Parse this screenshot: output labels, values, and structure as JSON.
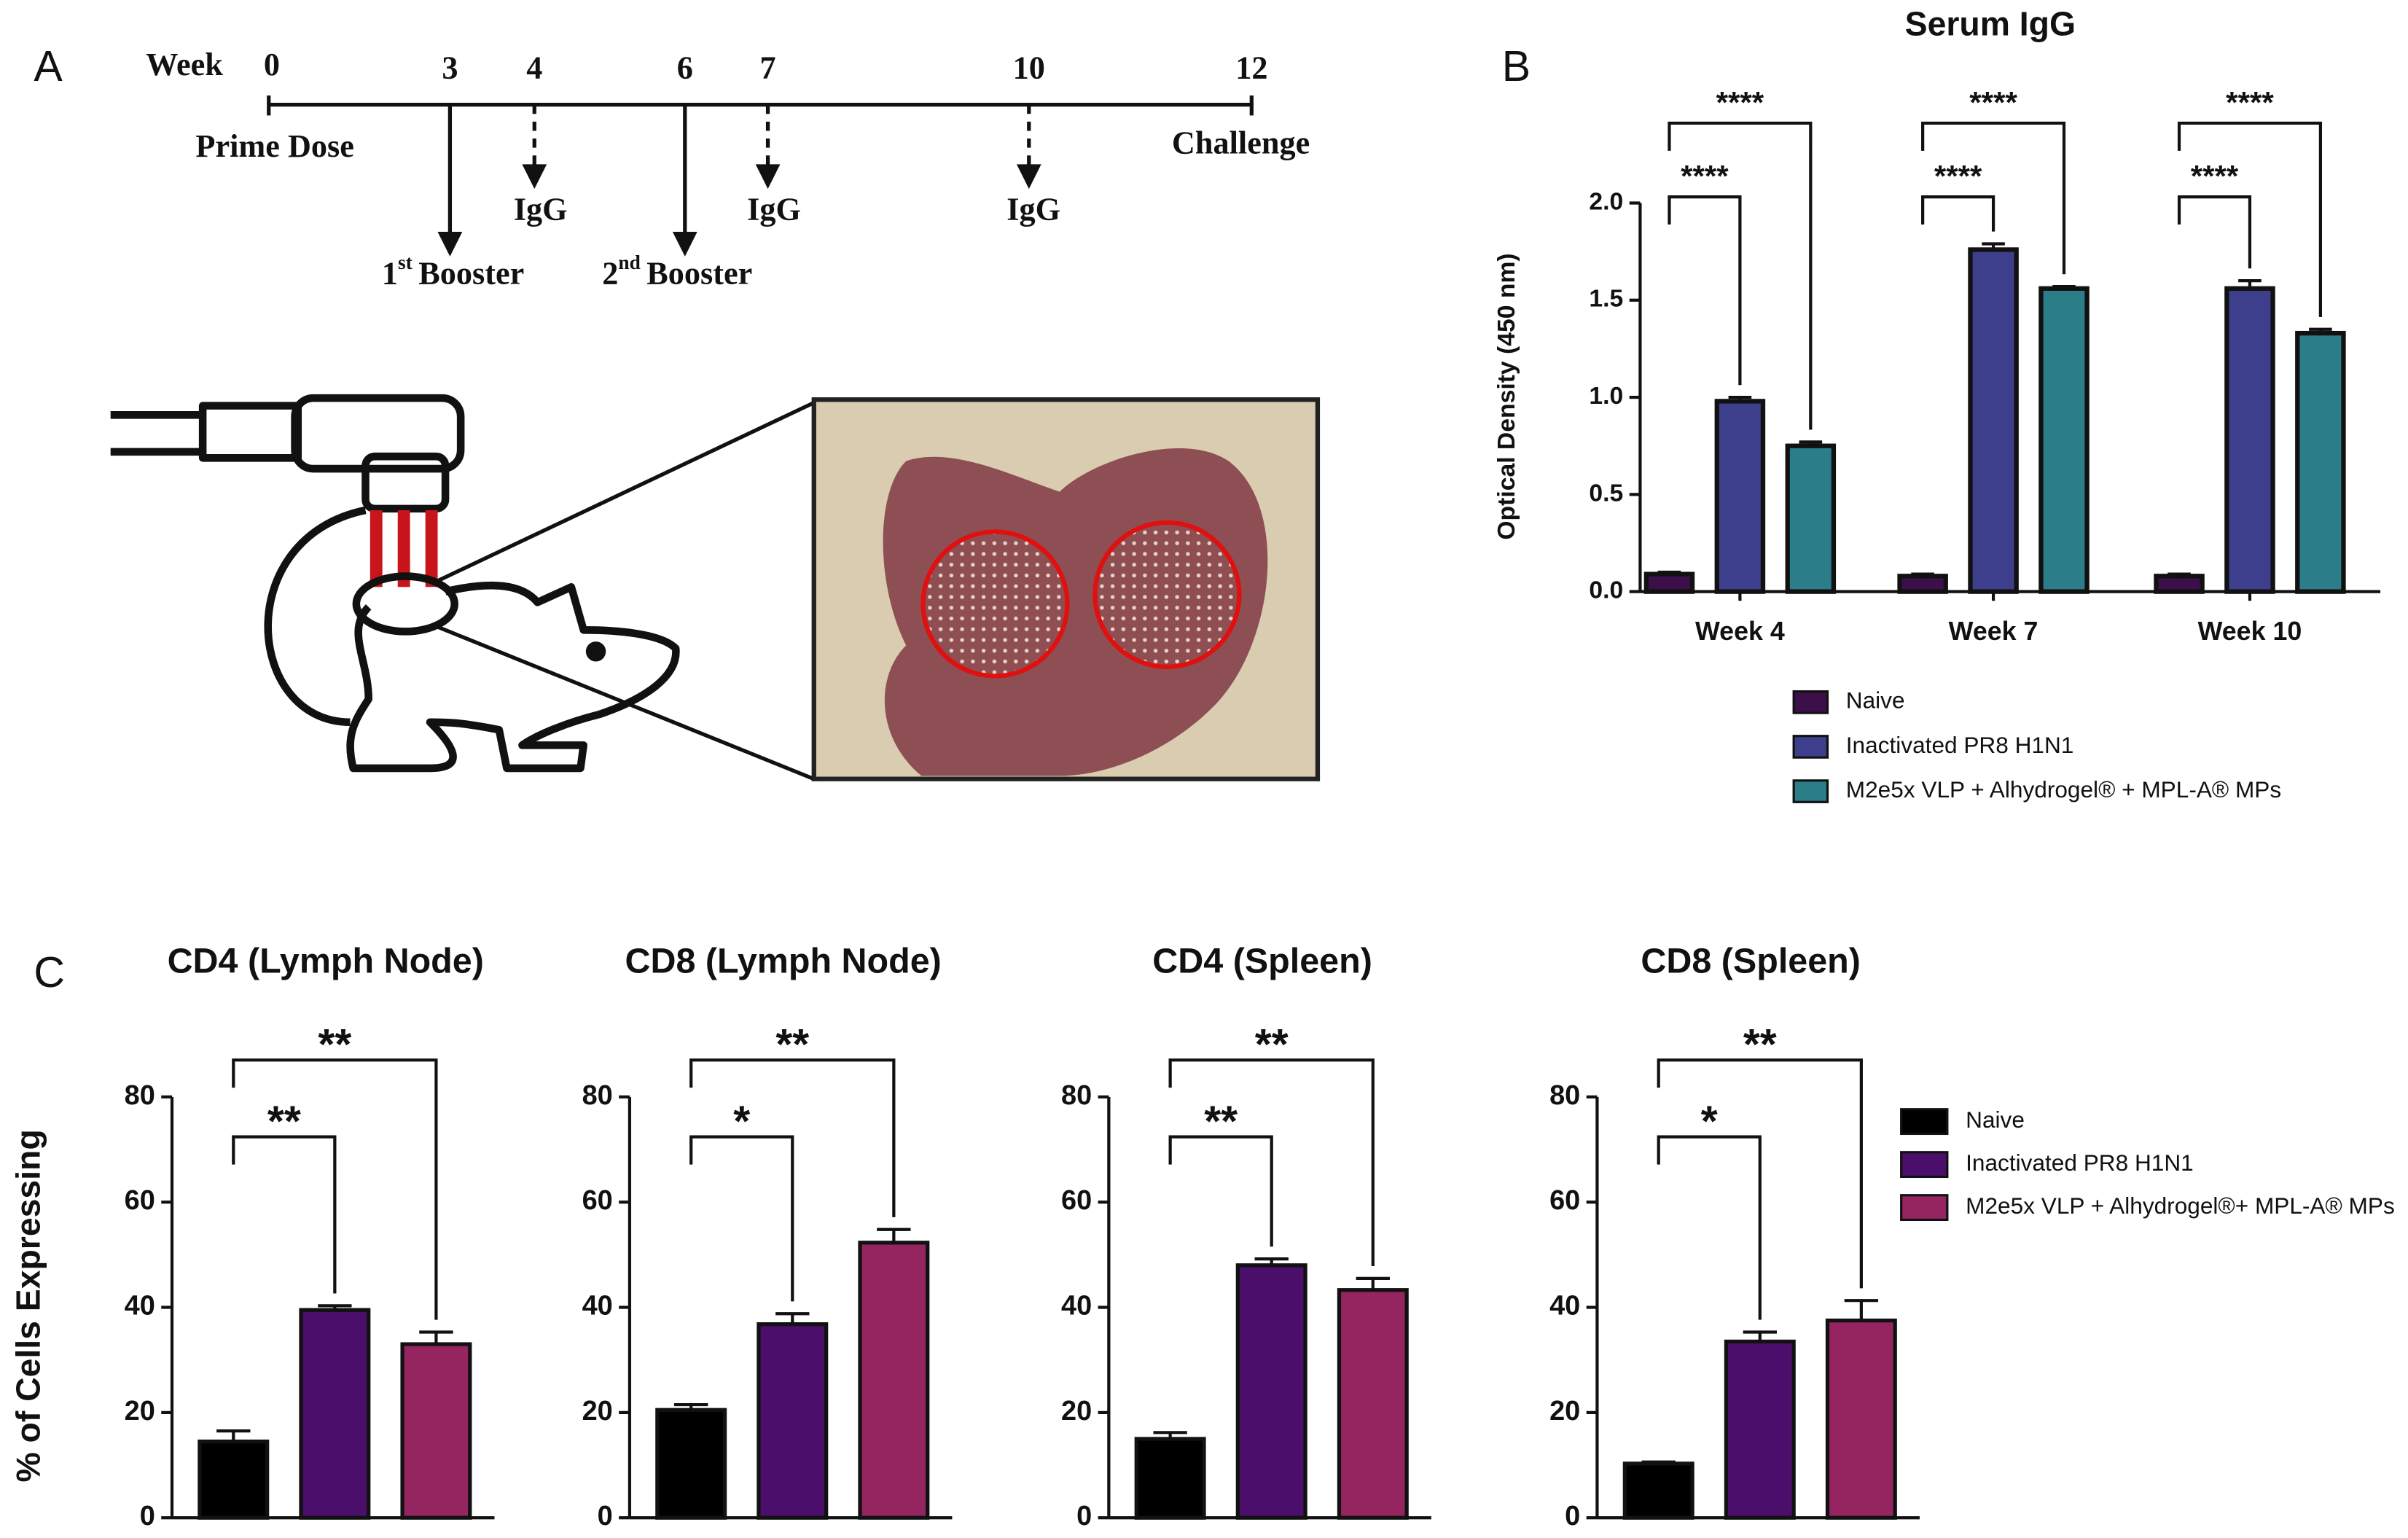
{
  "panel_labels": [
    "A",
    "B",
    "C"
  ],
  "timeline": {
    "axis_label": "Week",
    "weeks": [
      "0",
      "3",
      "4",
      "6",
      "7",
      "10",
      "12"
    ],
    "start_label": "Prime Dose",
    "end_label": "Challenge",
    "igg": [
      "IgG",
      "IgG",
      "IgG"
    ],
    "boosters": [
      {
        "ordinal": "1",
        "suffix": "st",
        "text": "Booster"
      },
      {
        "ordinal": "2",
        "suffix": "nd",
        "text": "Booster"
      }
    ]
  },
  "chart_data": [
    {
      "type": "bar",
      "title": "Serum IgG",
      "y_label": "Optical Density (450 nm)",
      "categories": [
        "Week 4",
        "Week 7",
        "Week 10"
      ],
      "series": [
        {
          "name": "Naive",
          "color": "#3d0f4a",
          "values": [
            0.09,
            0.08,
            0.08
          ],
          "errors": [
            0.01,
            0.01,
            0.01
          ]
        },
        {
          "name": "Inactivated PR8 H1N1",
          "color": "#3e3f8c",
          "values": [
            0.98,
            1.76,
            1.56
          ],
          "errors": [
            0.02,
            0.03,
            0.04
          ]
        },
        {
          "name": "M2e5x VLP + Alhydrogel® + MPL-A® MPs",
          "color": "#2b7d87",
          "values": [
            0.75,
            1.56,
            1.33
          ],
          "errors": [
            0.02,
            0.01,
            0.02
          ]
        }
      ],
      "ylim": [
        0,
        2
      ],
      "yticks": [
        {
          "value": 0,
          "label": "0.0"
        },
        0.5,
        {
          "value": 1,
          "label": "1.0"
        },
        1.5,
        {
          "value": 2,
          "label": "2.0"
        }
      ],
      "legend": "bottom",
      "significance": [
        {
          "category": "Week 4",
          "pair": [
            "Naive",
            "Inactivated PR8 H1N1"
          ],
          "label": "****"
        },
        {
          "category": "Week 4",
          "pair": [
            "Naive",
            "M2e5x VLP + Alhydrogel® + MPL-A® MPs"
          ],
          "label": "****"
        },
        {
          "category": "Week 7",
          "pair": [
            "Naive",
            "Inactivated PR8 H1N1"
          ],
          "label": "****"
        },
        {
          "category": "Week 7",
          "pair": [
            "Naive",
            "M2e5x VLP + Alhydrogel® + MPL-A® MPs"
          ],
          "label": "****"
        },
        {
          "category": "Week 10",
          "pair": [
            "Naive",
            "Inactivated PR8 H1N1"
          ],
          "label": "****"
        },
        {
          "category": "Week 10",
          "pair": [
            "Naive",
            "M2e5x VLP + Alhydrogel® + MPL-A® MPs"
          ],
          "label": "****"
        }
      ]
    },
    {
      "type": "bar",
      "title": "CD4 (Lymph Node)",
      "y_label": "% of Cells Expressing",
      "series": [
        {
          "name": "Naive",
          "color": "#000000",
          "values": [
            14.5
          ],
          "errors": [
            2
          ]
        },
        {
          "name": "Inactivated PR8 H1N1",
          "color": "#4b0f6b",
          "values": [
            39.5
          ],
          "errors": [
            0.8
          ]
        },
        {
          "name": "M2e5x VLP + Alhydrogel®+ MPL-A® MPs",
          "color": "#952561",
          "values": [
            33
          ],
          "errors": [
            2.3
          ]
        }
      ],
      "ylim": [
        0,
        80
      ],
      "yticks": [
        0,
        20,
        40,
        60,
        80
      ],
      "significance": [
        {
          "pair": [
            "Naive",
            "Inactivated PR8 H1N1"
          ],
          "label": "**"
        },
        {
          "pair": [
            "Naive",
            "M2e5x VLP + Alhydrogel®+ MPL-A® MPs"
          ],
          "label": "**"
        }
      ]
    },
    {
      "type": "bar",
      "title": "CD8 (Lymph Node)",
      "series": [
        {
          "name": "Naive",
          "color": "#000000",
          "values": [
            20.5
          ],
          "errors": [
            1
          ]
        },
        {
          "name": "Inactivated PR8 H1N1",
          "color": "#4b0f6b",
          "values": [
            36.8
          ],
          "errors": [
            2
          ]
        },
        {
          "name": "M2e5x VLP + Alhydrogel®+ MPL-A® MPs",
          "color": "#952561",
          "values": [
            52.3
          ],
          "errors": [
            2.5
          ]
        }
      ],
      "ylim": [
        0,
        80
      ],
      "yticks": [
        0,
        20,
        40,
        60,
        80
      ],
      "significance": [
        {
          "pair": [
            "Naive",
            "Inactivated PR8 H1N1"
          ],
          "label": "*"
        },
        {
          "pair": [
            "Naive",
            "M2e5x VLP + Alhydrogel®+ MPL-A® MPs"
          ],
          "label": "**"
        }
      ]
    },
    {
      "type": "bar",
      "title": "CD4 (Spleen)",
      "series": [
        {
          "name": "Naive",
          "color": "#000000",
          "values": [
            15
          ],
          "errors": [
            1.2
          ]
        },
        {
          "name": "Inactivated PR8 H1N1",
          "color": "#4b0f6b",
          "values": [
            48
          ],
          "errors": [
            1.2
          ]
        },
        {
          "name": "M2e5x VLP + Alhydrogel®+ MPL-A® MPs",
          "color": "#952561",
          "values": [
            43.3
          ],
          "errors": [
            2.2
          ]
        }
      ],
      "ylim": [
        0,
        80
      ],
      "yticks": [
        0,
        20,
        40,
        60,
        80
      ],
      "significance": [
        {
          "pair": [
            "Naive",
            "Inactivated PR8 H1N1"
          ],
          "label": "**"
        },
        {
          "pair": [
            "Naive",
            "M2e5x VLP + Alhydrogel®+ MPL-A® MPs"
          ],
          "label": "**"
        }
      ]
    },
    {
      "type": "bar",
      "title": "CD8 (Spleen)",
      "series": [
        {
          "name": "Naive",
          "color": "#000000",
          "values": [
            10.3
          ],
          "errors": [
            0.3
          ]
        },
        {
          "name": "Inactivated PR8 H1N1",
          "color": "#4b0f6b",
          "values": [
            33.5
          ],
          "errors": [
            1.8
          ]
        },
        {
          "name": "M2e5x VLP + Alhydrogel®+ MPL-A® MPs",
          "color": "#952561",
          "values": [
            37.5
          ],
          "errors": [
            3.8
          ]
        }
      ],
      "ylim": [
        0,
        80
      ],
      "yticks": [
        0,
        20,
        40,
        60,
        80
      ],
      "legend": "right",
      "significance": [
        {
          "pair": [
            "Naive",
            "Inactivated PR8 H1N1"
          ],
          "label": "*"
        },
        {
          "pair": [
            "Naive",
            "M2e5x VLP + Alhydrogel®+ MPL-A® MPs"
          ],
          "label": "**"
        }
      ]
    }
  ]
}
